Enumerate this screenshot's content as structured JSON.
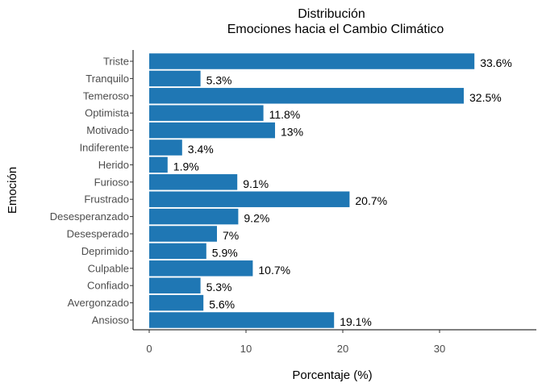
{
  "chart_data": {
    "type": "bar",
    "orientation": "horizontal",
    "title": "Distribución",
    "subtitle": "Emociones hacia el Cambio Climático",
    "xlabel": "Porcentaje (%)",
    "ylabel": "Emoción",
    "categories": [
      "Triste",
      "Tranquilo",
      "Temeroso",
      "Optimista",
      "Motivado",
      "Indiferente",
      "Herido",
      "Furioso",
      "Frustrado",
      "Desesperanzado",
      "Desesperado",
      "Deprimido",
      "Culpable",
      "Confiado",
      "Avergonzado",
      "Ansioso"
    ],
    "values": [
      33.6,
      5.3,
      32.5,
      11.8,
      13,
      3.4,
      1.9,
      9.1,
      20.7,
      9.2,
      7,
      5.9,
      10.7,
      5.3,
      5.6,
      19.1
    ],
    "value_labels": [
      "33.6%",
      "5.3%",
      "32.5%",
      "11.8%",
      "13%",
      "3.4%",
      "1.9%",
      "9.1%",
      "20.7%",
      "9.2%",
      "7%",
      "5.9%",
      "10.7%",
      "5.3%",
      "5.6%",
      "19.1%"
    ],
    "xticks": [
      0,
      10,
      20,
      30
    ],
    "xtick_labels": [
      "0",
      "10",
      "20",
      "30"
    ],
    "xlim": [
      0,
      40
    ],
    "grid": false,
    "bar_color": "#1f77b4"
  }
}
